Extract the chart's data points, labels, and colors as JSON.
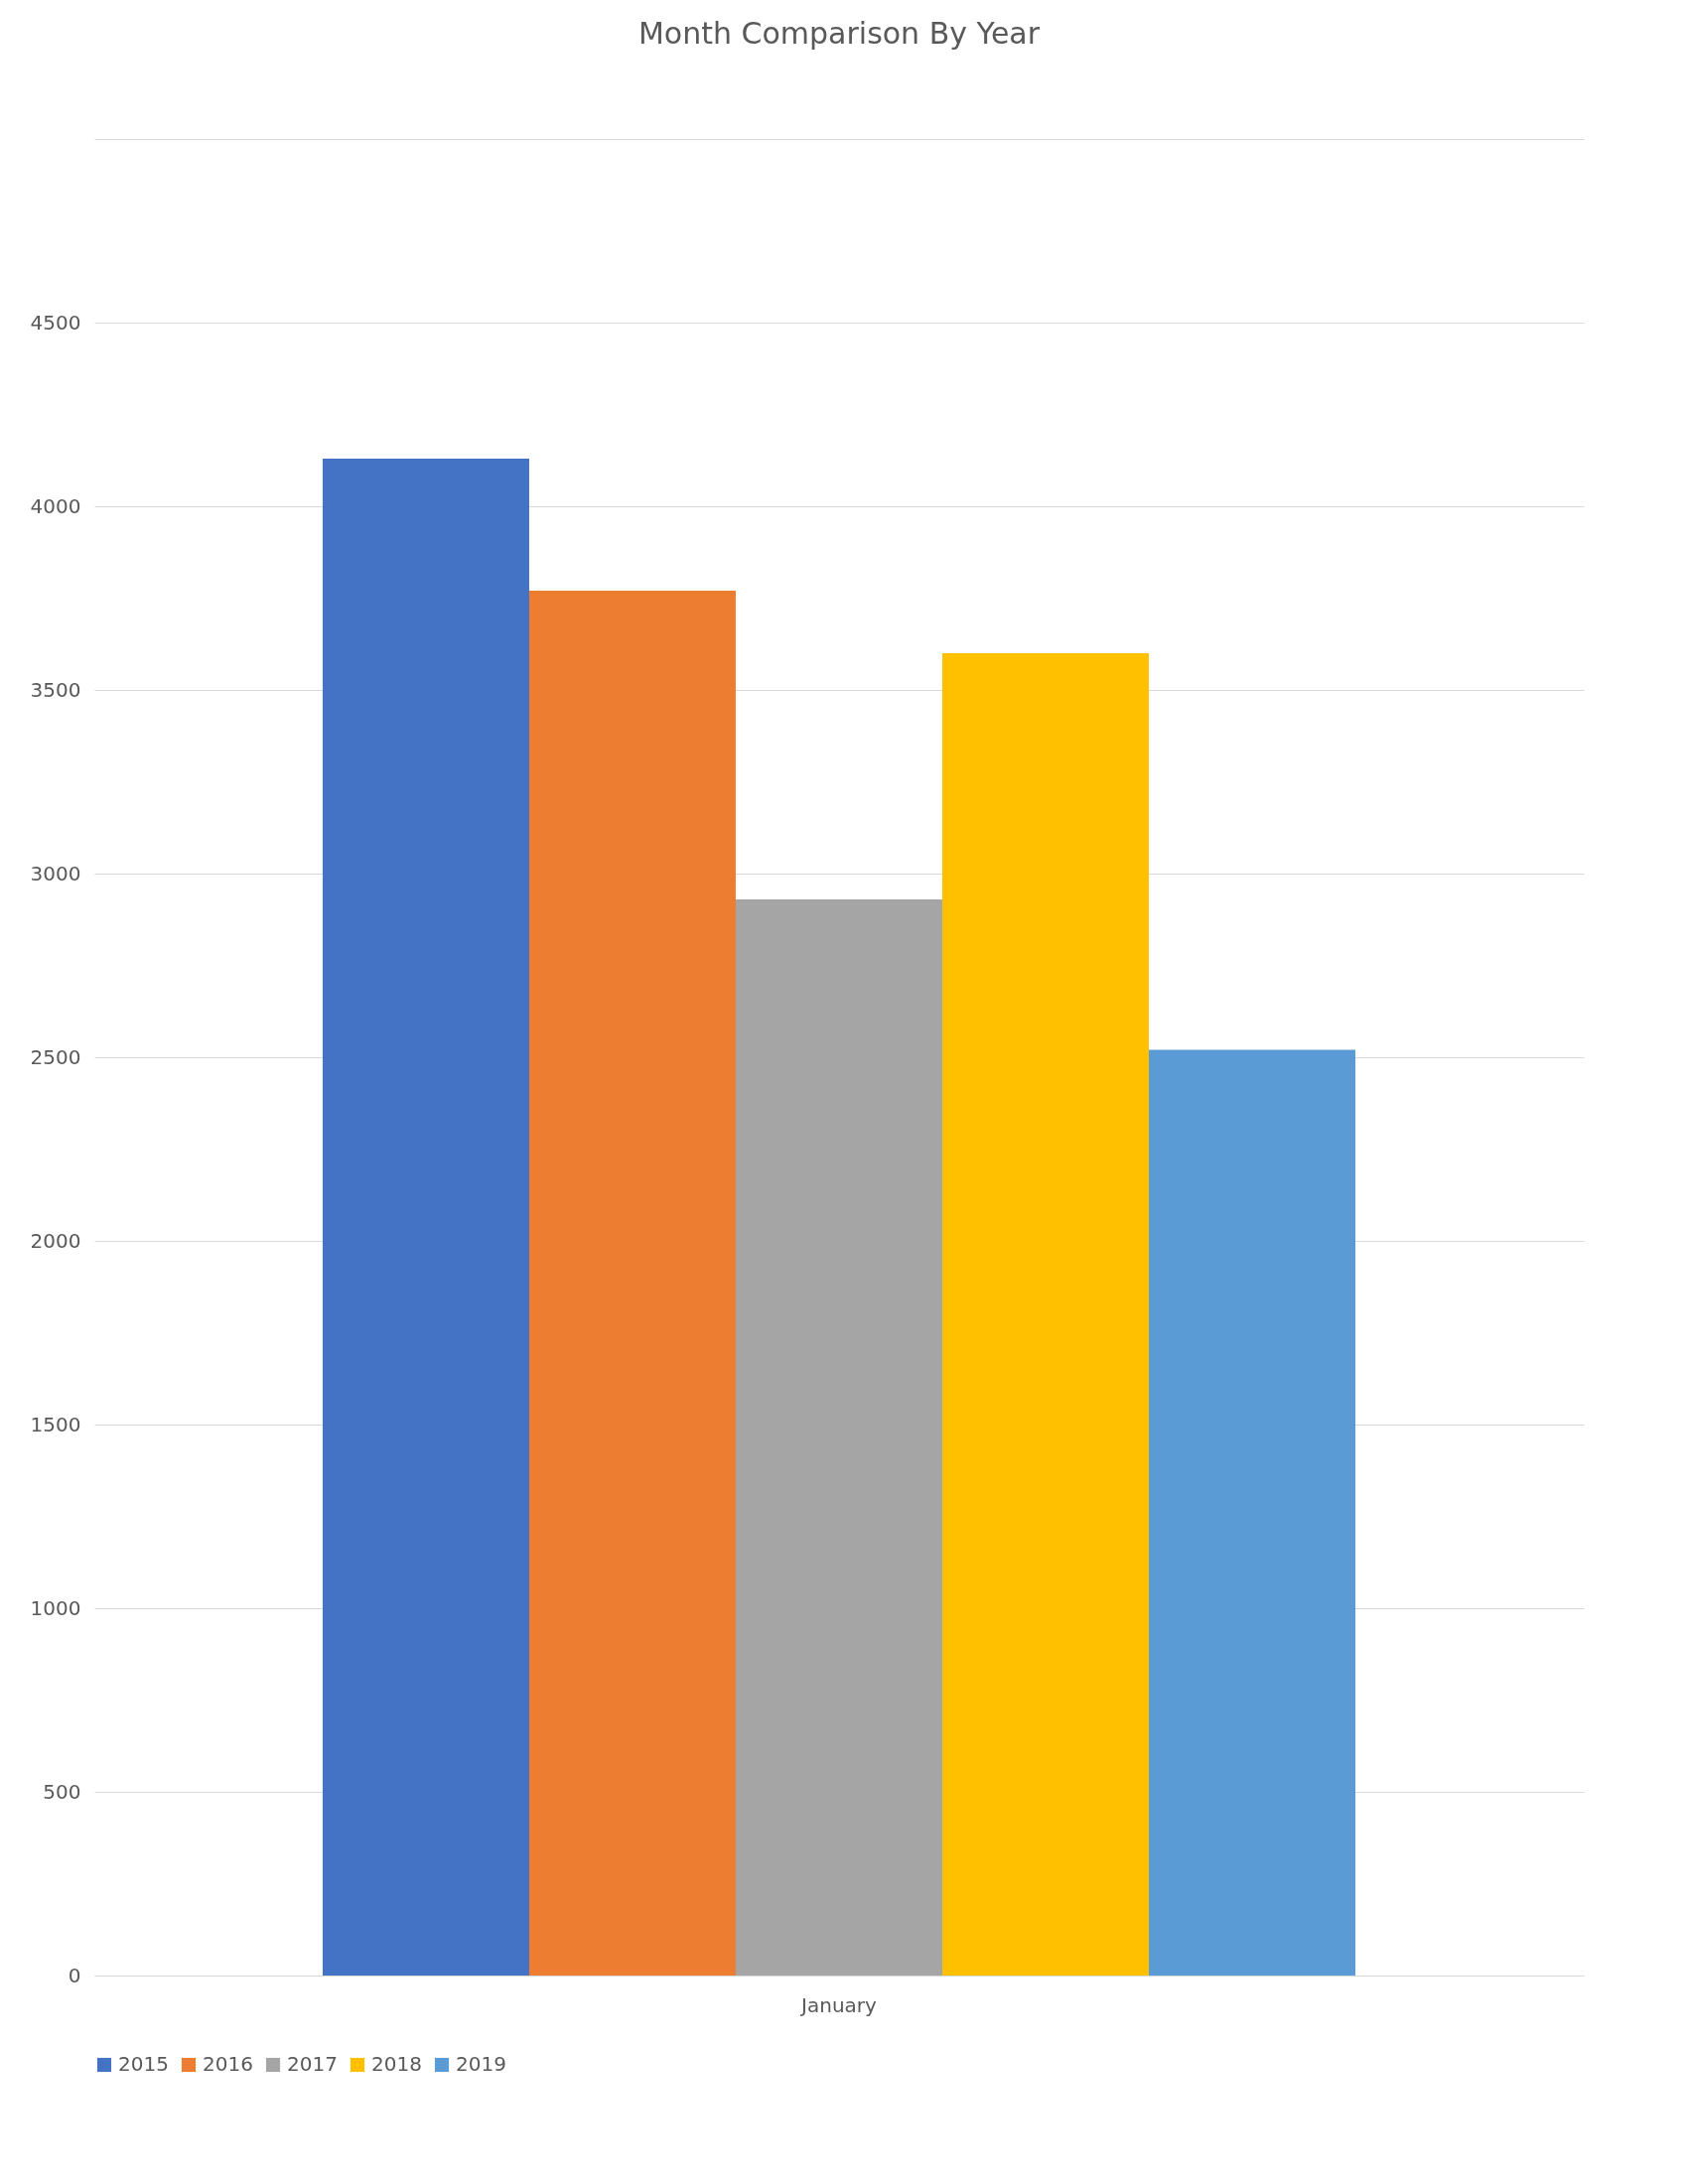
{
  "chart_data": {
    "type": "bar",
    "title": "Month Comparison By Year",
    "categories": [
      "January"
    ],
    "series": [
      {
        "name": "2015",
        "color": "#4472c4",
        "values": [
          4130
        ]
      },
      {
        "name": "2016",
        "color": "#ed7d31",
        "values": [
          3770
        ]
      },
      {
        "name": "2017",
        "color": "#a5a5a5",
        "values": [
          2930
        ]
      },
      {
        "name": "2018",
        "color": "#ffc000",
        "values": [
          3600
        ]
      },
      {
        "name": "2019",
        "color": "#5b9bd5",
        "values": [
          2520
        ]
      }
    ],
    "ylim": [
      0,
      5000
    ],
    "yticks": [
      0,
      500,
      1000,
      1500,
      2000,
      2500,
      3000,
      3500,
      4000,
      4500,
      {
        "value": 5000,
        "label": null
      }
    ],
    "grid": "y",
    "legend": "bottom"
  }
}
